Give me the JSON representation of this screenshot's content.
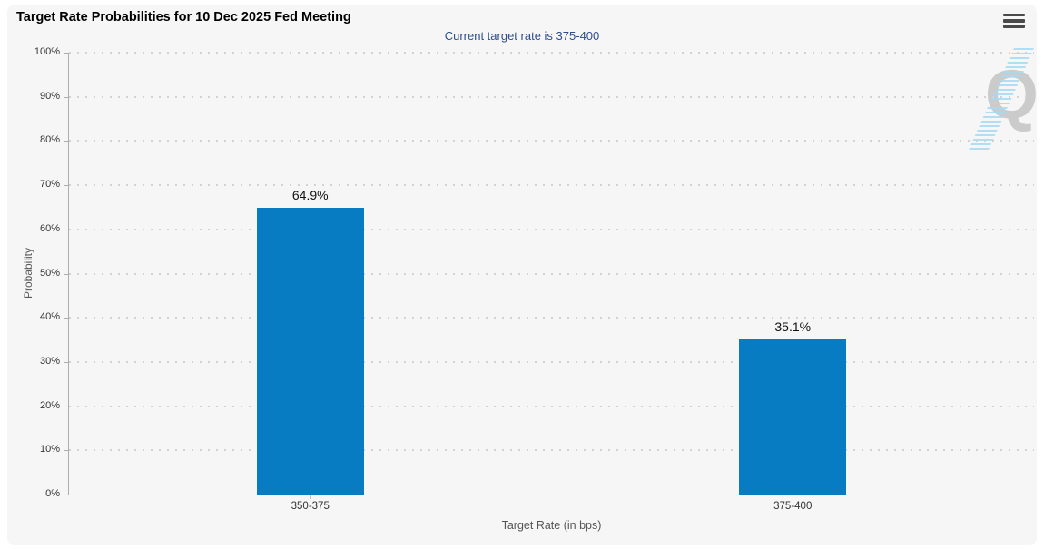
{
  "header": {
    "title": "Target Rate Probabilities for 10 Dec 2025 Fed Meeting"
  },
  "subtitle": "Current target rate is 375-400",
  "watermark_letter": "Q",
  "chart_data": {
    "type": "bar",
    "title": "Target Rate Probabilities for 10 Dec 2025 Fed Meeting",
    "subtitle": "Current target rate is 375-400",
    "xlabel": "Target Rate (in bps)",
    "ylabel": "Probability",
    "categories": [
      "350-375",
      "375-400"
    ],
    "values": [
      64.9,
      35.1
    ],
    "bar_labels": [
      "64.9%",
      "35.1%"
    ],
    "ylim": [
      0,
      100
    ],
    "yticks": [
      {
        "value": 0,
        "label": "0%"
      },
      {
        "value": 10,
        "label": "10%"
      },
      {
        "value": 20,
        "label": "20%"
      },
      {
        "value": 30,
        "label": "30%"
      },
      {
        "value": 40,
        "label": "40%"
      },
      {
        "value": 50,
        "label": "50%"
      },
      {
        "value": 60,
        "label": "60%"
      },
      {
        "value": 70,
        "label": "70%"
      },
      {
        "value": 80,
        "label": "80%"
      },
      {
        "value": 90,
        "label": "90%"
      },
      {
        "value": 100,
        "label": "100%"
      }
    ],
    "grid": "dotted-horizontal",
    "legend": "none"
  },
  "colors": {
    "bar": "#077cc2",
    "subtitle_text": "#2c4c8c",
    "card_background": "#f6f6f6",
    "axis_line": "#a8a8a8",
    "gridline": "#d2d2d2",
    "watermark_gray": "#cbcbcb",
    "watermark_blue": "#a5daf3"
  }
}
